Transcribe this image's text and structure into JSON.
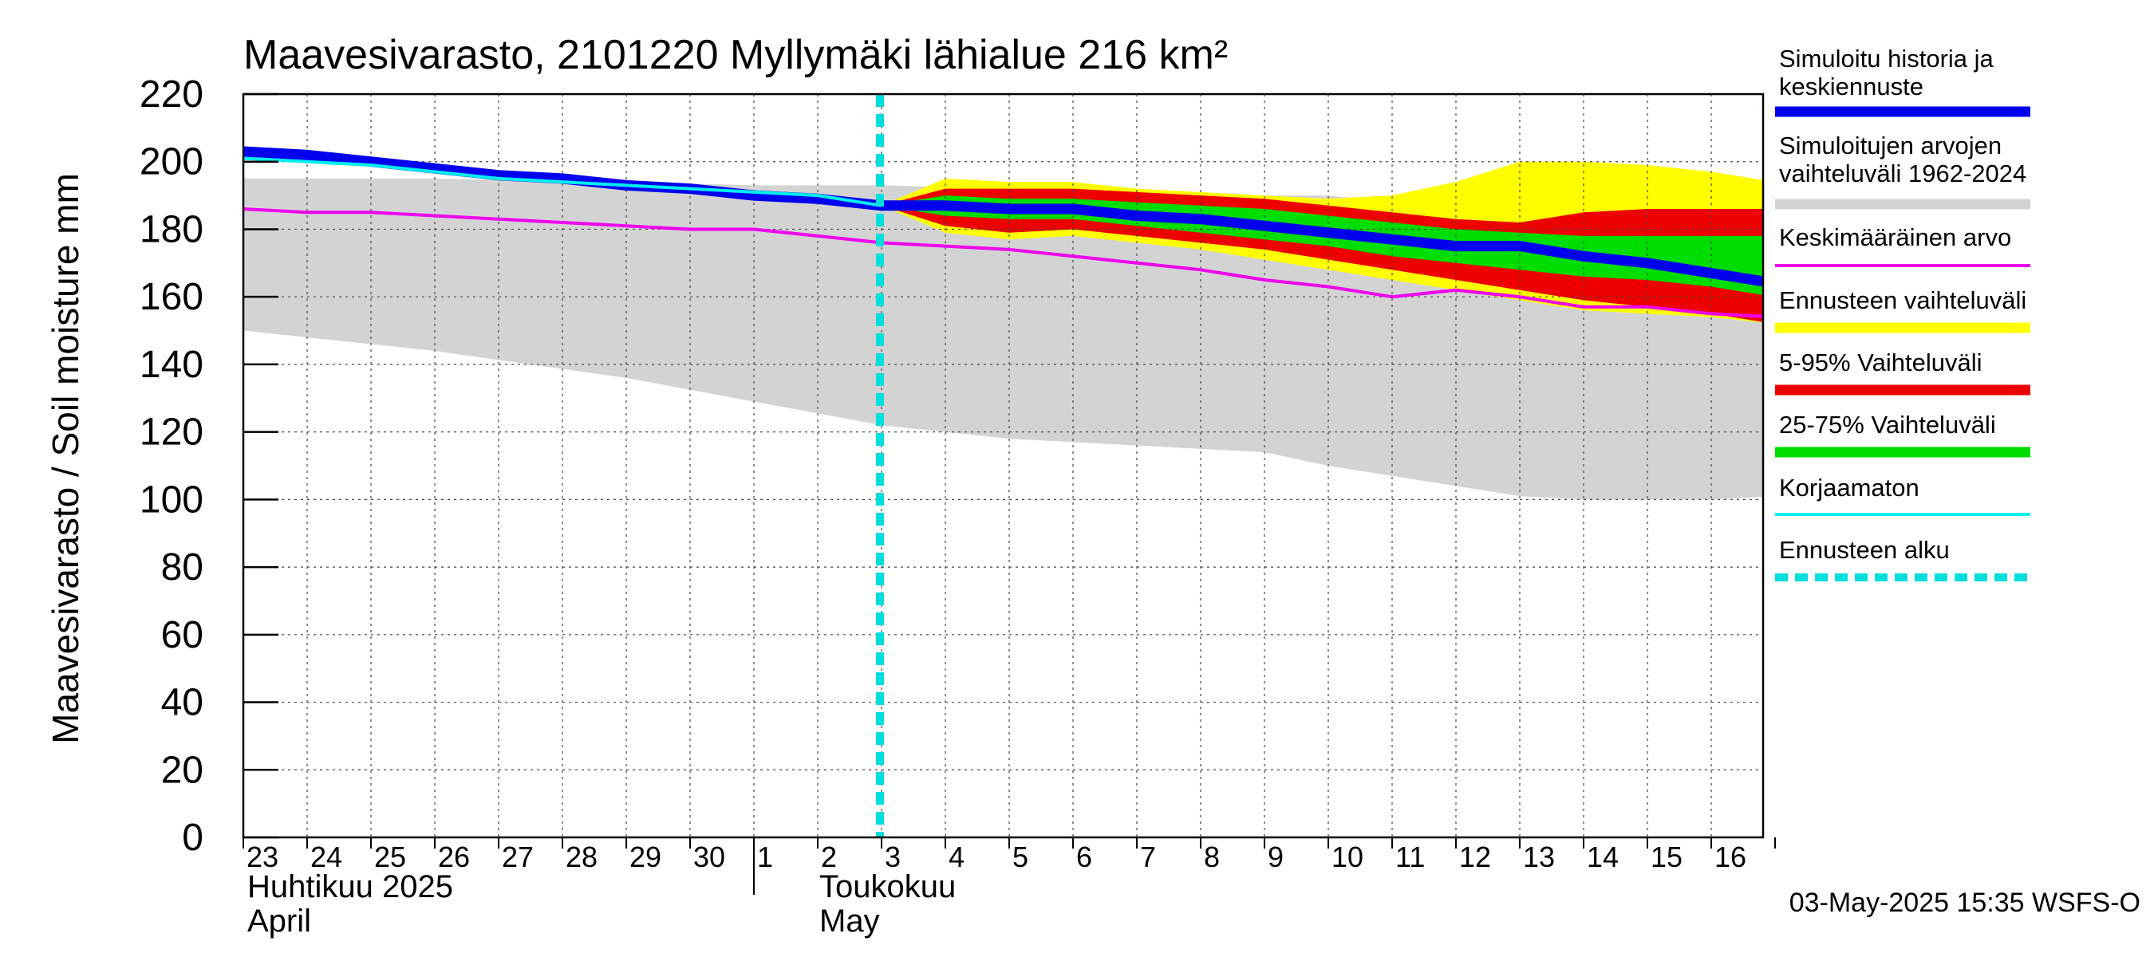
{
  "chart_data": {
    "type": "area",
    "title": "Maavesivarasto, 2101220 Myllymäki lähialue 216 km²",
    "ylabel": "Maavesivarasto / Soil moisture   mm",
    "ylim": [
      0,
      220
    ],
    "yticks": [
      0,
      20,
      40,
      60,
      80,
      100,
      120,
      140,
      160,
      180,
      200,
      220
    ],
    "grid": true,
    "legend_position": "right",
    "x_start": "2025-04-23",
    "x_end": "2025-05-16",
    "day_labels": [
      "23",
      "24",
      "25",
      "26",
      "27",
      "28",
      "29",
      "30",
      "1",
      "2",
      "3",
      "4",
      "5",
      "6",
      "7",
      "8",
      "9",
      "10",
      "11",
      "12",
      "13",
      "14",
      "15",
      "16"
    ],
    "month_labels": [
      {
        "fi": "Huhtikuu  2025",
        "en": "April",
        "date": "2025-04-23"
      },
      {
        "fi": "Toukokuu",
        "en": "May",
        "date": "2025-05-01"
      }
    ],
    "forecast_start": "2025-05-03",
    "timestamp": "03-May-2025 15:35 WSFS-O",
    "colors": {
      "history": "#0000ee",
      "hist_range": "#d3d3d3",
      "mean": "#ee00ee",
      "forecast_range": "#ffff00",
      "p5_95": "#ee0000",
      "p25_75": "#00dd00",
      "uncorrected": "#00eeee",
      "forecast_start": "#00dddd"
    },
    "series": {
      "hist_range": {
        "x": [
          "2025-04-23",
          "2025-04-26",
          "2025-04-29",
          "2025-05-01",
          "2025-05-03",
          "2025-05-05",
          "2025-05-07",
          "2025-05-09",
          "2025-05-10",
          "2025-05-11",
          "2025-05-12",
          "2025-05-13",
          "2025-05-14",
          "2025-05-15",
          "2025-05-16",
          "2025-05-17"
        ],
        "upper": [
          195,
          195,
          194,
          193,
          193,
          192,
          191,
          190,
          190,
          188,
          186,
          185,
          186,
          186,
          186,
          185
        ],
        "lower": [
          150,
          144,
          136,
          129,
          122,
          118,
          116,
          114,
          110,
          107,
          104,
          101,
          100,
          100,
          100,
          101
        ]
      },
      "forecast_range": {
        "x": [
          "2025-05-03",
          "2025-05-04",
          "2025-05-05",
          "2025-05-06",
          "2025-05-07",
          "2025-05-08",
          "2025-05-09",
          "2025-05-10",
          "2025-05-11",
          "2025-05-12",
          "2025-05-13",
          "2025-05-14",
          "2025-05-15",
          "2025-05-16",
          "2025-05-17"
        ],
        "upper": [
          187,
          195,
          194,
          194,
          192,
          191,
          190,
          189,
          190,
          194,
          200,
          200,
          199,
          197,
          194
        ],
        "lower": [
          187,
          179,
          177,
          178,
          176,
          174,
          171,
          168,
          165,
          162,
          159,
          156,
          155,
          154,
          152
        ]
      },
      "p5_95": {
        "x": [
          "2025-05-03",
          "2025-05-04",
          "2025-05-05",
          "2025-05-06",
          "2025-05-07",
          "2025-05-08",
          "2025-05-09",
          "2025-05-10",
          "2025-05-11",
          "2025-05-12",
          "2025-05-13",
          "2025-05-14",
          "2025-05-15",
          "2025-05-16",
          "2025-05-17"
        ],
        "upper": [
          187,
          192,
          192,
          192,
          191,
          190,
          189,
          187,
          185,
          183,
          182,
          185,
          186,
          186,
          186
        ],
        "lower": [
          187,
          181,
          179,
          180,
          178,
          176,
          174,
          171,
          168,
          165,
          162,
          159,
          157,
          155,
          152
        ]
      },
      "p25_75": {
        "x": [
          "2025-05-03",
          "2025-05-04",
          "2025-05-05",
          "2025-05-06",
          "2025-05-07",
          "2025-05-08",
          "2025-05-09",
          "2025-05-10",
          "2025-05-11",
          "2025-05-12",
          "2025-05-13",
          "2025-05-14",
          "2025-05-15",
          "2025-05-16",
          "2025-05-17"
        ],
        "upper": [
          187,
          190,
          189,
          189,
          188,
          187,
          186,
          184,
          182,
          180,
          179,
          178,
          178,
          178,
          178
        ],
        "lower": [
          187,
          184,
          183,
          183,
          181,
          179,
          177,
          175,
          172,
          170,
          168,
          166,
          165,
          163,
          160
        ]
      },
      "history": {
        "name": "Simuloitu historia ja keskiennuste",
        "x": [
          "2025-04-23",
          "2025-04-24",
          "2025-04-25",
          "2025-04-26",
          "2025-04-27",
          "2025-04-28",
          "2025-04-29",
          "2025-04-30",
          "2025-05-01",
          "2025-05-02",
          "2025-05-03",
          "2025-05-04",
          "2025-05-05",
          "2025-05-06",
          "2025-05-07",
          "2025-05-08",
          "2025-05-09",
          "2025-05-10",
          "2025-05-11",
          "2025-05-12",
          "2025-05-13",
          "2025-05-14",
          "2025-05-15",
          "2025-05-16",
          "2025-05-17"
        ],
        "values": [
          203,
          202,
          200,
          198,
          196,
          195,
          193,
          192,
          190,
          189,
          187,
          187,
          186,
          186,
          184,
          183,
          181,
          179,
          177,
          175,
          175,
          172,
          170,
          167,
          164
        ]
      },
      "uncorrected": {
        "name": "Korjaamaton",
        "x": [
          "2025-04-23",
          "2025-04-24",
          "2025-04-25",
          "2025-04-26",
          "2025-04-27",
          "2025-04-28",
          "2025-04-29",
          "2025-04-30",
          "2025-05-01",
          "2025-05-02",
          "2025-05-03"
        ],
        "values": [
          201,
          200,
          199,
          197,
          195,
          194,
          193,
          192,
          191,
          190,
          187
        ]
      },
      "mean": {
        "name": "Keskimääräinen arvo",
        "x": [
          "2025-04-23",
          "2025-04-24",
          "2025-04-25",
          "2025-04-26",
          "2025-04-27",
          "2025-04-28",
          "2025-04-29",
          "2025-04-30",
          "2025-05-01",
          "2025-05-02",
          "2025-05-03",
          "2025-05-04",
          "2025-05-05",
          "2025-05-06",
          "2025-05-07",
          "2025-05-08",
          "2025-05-09",
          "2025-05-10",
          "2025-05-11",
          "2025-05-12",
          "2025-05-13",
          "2025-05-14",
          "2025-05-15",
          "2025-05-16",
          "2025-05-17"
        ],
        "values": [
          186,
          185,
          185,
          184,
          183,
          182,
          181,
          180,
          180,
          178,
          176,
          175,
          174,
          172,
          170,
          168,
          165,
          163,
          160,
          162,
          160,
          157,
          157,
          155,
          154
        ]
      }
    },
    "legend": [
      {
        "label": "Simuloitu historia ja keskiennuste",
        "color": "#0000ee",
        "style": "thick"
      },
      {
        "label": "Simuloitujen arvojen vaihteluväli 1962-2024",
        "color": "#d3d3d3",
        "style": "thick"
      },
      {
        "label": "Keskimääräinen arvo",
        "color": "#ee00ee",
        "style": "thin"
      },
      {
        "label": "Ennusteen vaihteluväli",
        "color": "#ffff00",
        "style": "thick"
      },
      {
        "label": "5-95% Vaihteluväli",
        "color": "#ee0000",
        "style": "thick"
      },
      {
        "label": "25-75% Vaihteluväli",
        "color": "#00dd00",
        "style": "thick"
      },
      {
        "label": "Korjaamaton",
        "color": "#00eeee",
        "style": "thin"
      },
      {
        "label": "Ennusteen alku",
        "color": "#00dddd",
        "style": "dashed"
      }
    ]
  }
}
